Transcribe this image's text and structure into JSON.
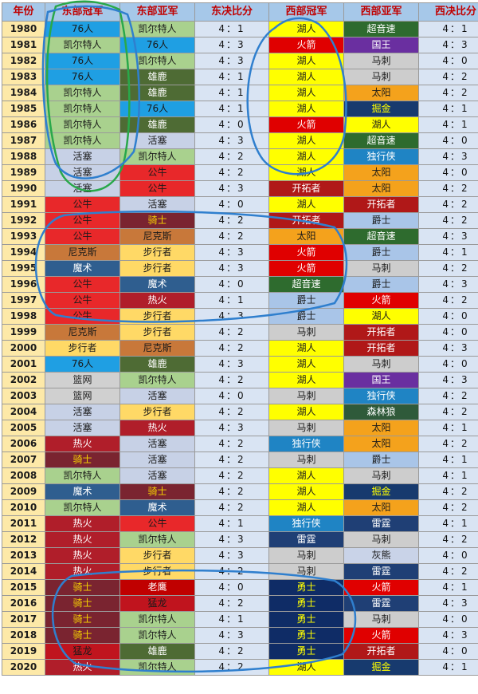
{
  "headers": [
    "年份",
    "东部冠军",
    "东部亚军",
    "东决比分",
    "西部冠军",
    "西部亚军",
    "西决比分"
  ],
  "colors": {
    "header_bg": "#a6c8e9",
    "header_text": "#c00000",
    "year_bg": "#fde9a8",
    "score_bg": "#d9e4f3",
    "marker": "#2f7fce",
    "marker_green": "#29a84a",
    "teams": {
      "76人": [
        "#1f9fe3",
        "#1a1a1a"
      ],
      "凯尔特人": [
        "#a9d18e",
        "#1a1a1a"
      ],
      "活塞": [
        "#c7d1e6",
        "#1a1a1a"
      ],
      "公牛": [
        "#e8282a",
        "#1a1a1a"
      ],
      "骑士": [
        "#7a2430",
        "#f5d300"
      ],
      "尼克斯": [
        "#c8783a",
        "#1a1a1a"
      ],
      "魔术": [
        "#2f5e8f",
        "#ffffff"
      ],
      "步行者": [
        "#ffd966",
        "#1a1a1a"
      ],
      "篮网": [
        "#d0d0d0",
        "#1a1a1a"
      ],
      "热火": [
        "#b01e2a",
        "#ffffff"
      ],
      "猛龙": [
        "#c0141e",
        "#1a1a1a"
      ],
      "雄鹿": [
        "#4e6b34",
        "#ffffff"
      ],
      "老鹰": [
        "#c00000",
        "#ffffff"
      ],
      "湖人": [
        "#ffff00",
        "#1a1a1a"
      ],
      "火箭": [
        "#e00000",
        "#ffffff"
      ],
      "开拓者": [
        "#b01818",
        "#ffffff"
      ],
      "太阳": [
        "#f4a21c",
        "#1a1a1a"
      ],
      "超音速": [
        "#2e6b2e",
        "#ffffff"
      ],
      "爵士": [
        "#a9c5e8",
        "#1a1a1a"
      ],
      "马刺": [
        "#cdcdcd",
        "#1a1a1a"
      ],
      "独行侠": [
        "#1f84c4",
        "#ffffff"
      ],
      "雷霆": [
        "#1f3f75",
        "#ffffff"
      ],
      "勇士": [
        "#0f2c66",
        "#ffff00"
      ],
      "国王": [
        "#6a2fa0",
        "#ffffff"
      ],
      "掘金": [
        "#173a6e",
        "#ffff00"
      ],
      "森林狼": [
        "#2f5a3a",
        "#ffffff"
      ],
      "灰熊": [
        "#c9d3e8",
        "#1a1a1a"
      ]
    }
  },
  "rows": [
    [
      "1980",
      "76人",
      "凯尔特人",
      "4：1",
      "湖人",
      "超音速",
      "4：1"
    ],
    [
      "1981",
      "凯尔特人",
      "76人",
      "4：3",
      "火箭",
      "国王",
      "4：3"
    ],
    [
      "1982",
      "76人",
      "凯尔特人",
      "4：3",
      "湖人",
      "马刺",
      "4：0"
    ],
    [
      "1983",
      "76人",
      "雄鹿",
      "4：1",
      "湖人",
      "马刺",
      "4：2"
    ],
    [
      "1984",
      "凯尔特人",
      "雄鹿",
      "4：1",
      "湖人",
      "太阳",
      "4：2"
    ],
    [
      "1985",
      "凯尔特人",
      "76人",
      "4：1",
      "湖人",
      "掘金",
      "4：1"
    ],
    [
      "1986",
      "凯尔特人",
      "雄鹿",
      "4：0",
      "火箭",
      "湖人",
      "4：1"
    ],
    [
      "1987",
      "凯尔特人",
      "活塞",
      "4：3",
      "湖人",
      "超音速",
      "4：0"
    ],
    [
      "1988",
      "活塞",
      "凯尔特人",
      "4：2",
      "湖人",
      "独行侠",
      "4：3"
    ],
    [
      "1989",
      "活塞",
      "公牛",
      "4：2",
      "湖人",
      "太阳",
      "4：0"
    ],
    [
      "1990",
      "活塞",
      "公牛",
      "4：3",
      "开拓者",
      "太阳",
      "4：2"
    ],
    [
      "1991",
      "公牛",
      "活塞",
      "4：0",
      "湖人",
      "开拓者",
      "4：2"
    ],
    [
      "1992",
      "公牛",
      "骑士",
      "4：2",
      "开拓者",
      "爵士",
      "4：2"
    ],
    [
      "1993",
      "公牛",
      "尼克斯",
      "4：2",
      "太阳",
      "超音速",
      "4：3"
    ],
    [
      "1994",
      "尼克斯",
      "步行者",
      "4：3",
      "火箭",
      "爵士",
      "4：1"
    ],
    [
      "1995",
      "魔术",
      "步行者",
      "4：3",
      "火箭",
      "马刺",
      "4：2"
    ],
    [
      "1996",
      "公牛",
      "魔术",
      "4：0",
      "超音速",
      "爵士",
      "4：3"
    ],
    [
      "1997",
      "公牛",
      "热火",
      "4：1",
      "爵士",
      "火箭",
      "4：2"
    ],
    [
      "1998",
      "公牛",
      "步行者",
      "4：3",
      "爵士",
      "湖人",
      "4：0"
    ],
    [
      "1999",
      "尼克斯",
      "步行者",
      "4：2",
      "马刺",
      "开拓者",
      "4：0"
    ],
    [
      "2000",
      "步行者",
      "尼克斯",
      "4：2",
      "湖人",
      "开拓者",
      "4：3"
    ],
    [
      "2001",
      "76人",
      "雄鹿",
      "4：3",
      "湖人",
      "马刺",
      "4：0"
    ],
    [
      "2002",
      "篮网",
      "凯尔特人",
      "4：2",
      "湖人",
      "国王",
      "4：3"
    ],
    [
      "2003",
      "篮网",
      "活塞",
      "4：0",
      "马刺",
      "独行侠",
      "4：2"
    ],
    [
      "2004",
      "活塞",
      "步行者",
      "4：2",
      "湖人",
      "森林狼",
      "4：2"
    ],
    [
      "2005",
      "活塞",
      "热火",
      "4：3",
      "马刺",
      "太阳",
      "4：1"
    ],
    [
      "2006",
      "热火",
      "活塞",
      "4：2",
      "独行侠",
      "太阳",
      "4：2"
    ],
    [
      "2007",
      "骑士",
      "活塞",
      "4：2",
      "马刺",
      "爵士",
      "4：1"
    ],
    [
      "2008",
      "凯尔特人",
      "活塞",
      "4：2",
      "湖人",
      "马刺",
      "4：1"
    ],
    [
      "2009",
      "魔术",
      "骑士",
      "4：2",
      "湖人",
      "掘金",
      "4：2"
    ],
    [
      "2010",
      "凯尔特人",
      "魔术",
      "4：2",
      "湖人",
      "太阳",
      "4：2"
    ],
    [
      "2011",
      "热火",
      "公牛",
      "4：1",
      "独行侠",
      "雷霆",
      "4：1"
    ],
    [
      "2012",
      "热火",
      "凯尔特人",
      "4：3",
      "雷霆",
      "马刺",
      "4：2"
    ],
    [
      "2013",
      "热火",
      "步行者",
      "4：3",
      "马刺",
      "灰熊",
      "4：0"
    ],
    [
      "2014",
      "热火",
      "步行者",
      "4：2",
      "马刺",
      "雷霆",
      "4：2"
    ],
    [
      "2015",
      "骑士",
      "老鹰",
      "4：0",
      "勇士",
      "火箭",
      "4：1"
    ],
    [
      "2016",
      "骑士",
      "猛龙",
      "4：2",
      "勇士",
      "雷霆",
      "4：3"
    ],
    [
      "2017",
      "骑士",
      "凯尔特人",
      "4：1",
      "勇士",
      "马刺",
      "4：0"
    ],
    [
      "2018",
      "骑士",
      "凯尔特人",
      "4：3",
      "勇士",
      "火箭",
      "4：3"
    ],
    [
      "2019",
      "猛龙",
      "雄鹿",
      "4：2",
      "勇士",
      "开拓者",
      "4：0"
    ],
    [
      "2020",
      "热火",
      "凯尔特人",
      "4：2",
      "湖人",
      "掘金",
      "4：1"
    ]
  ]
}
